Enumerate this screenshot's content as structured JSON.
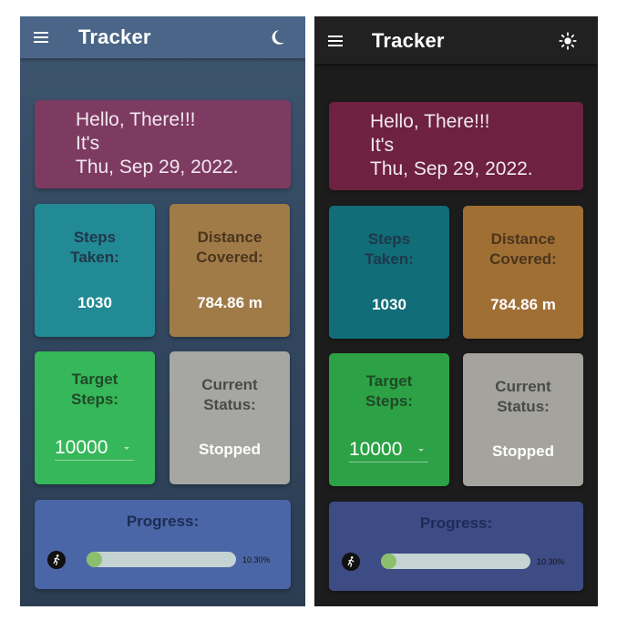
{
  "screens": [
    {
      "theme": "light",
      "app_title": "Tracker",
      "theme_toggle_icon": "moon-icon",
      "greeting": {
        "line1": "Hello, There!!!",
        "line2": "It's",
        "line3": "Thu, Sep 29, 2022."
      },
      "steps": {
        "label": "Steps\nTaken:",
        "value": "1030"
      },
      "distance": {
        "label": "Distance\nCovered:",
        "value": "784.86 m"
      },
      "target": {
        "label": "Target\nSteps:",
        "value": "10000"
      },
      "status": {
        "label": "Current\nStatus:",
        "value": "Stopped"
      },
      "progress": {
        "title": "Progress:",
        "percent_text": "10.30%",
        "fraction": 0.103
      },
      "colors": {
        "appbar": "#4a6587",
        "greeting": "#7e3b61",
        "steps": "#228a95",
        "distance": "#a07b48",
        "target": "#36b759",
        "status": "#a6a6a3",
        "progress": "#4a66a6"
      }
    },
    {
      "theme": "dark",
      "app_title": "Tracker",
      "theme_toggle_icon": "sun-icon",
      "greeting": {
        "line1": "Hello, There!!!",
        "line2": "It's",
        "line3": "Thu, Sep 29, 2022."
      },
      "steps": {
        "label": "Steps\nTaken:",
        "value": "1030"
      },
      "distance": {
        "label": "Distance\nCovered:",
        "value": "784.86 m"
      },
      "target": {
        "label": "Target\nSteps:",
        "value": "10000"
      },
      "status": {
        "label": "Current\nStatus:",
        "value": "Stopped"
      },
      "progress": {
        "title": "Progress:",
        "percent_text": "10.30%",
        "fraction": 0.103
      },
      "colors": {
        "appbar": "#212121",
        "greeting": "#6e2140",
        "steps": "#116d78",
        "distance": "#a06f34",
        "target": "#2da145",
        "status": "#a4a39e",
        "progress": "#3d4c85"
      }
    }
  ]
}
